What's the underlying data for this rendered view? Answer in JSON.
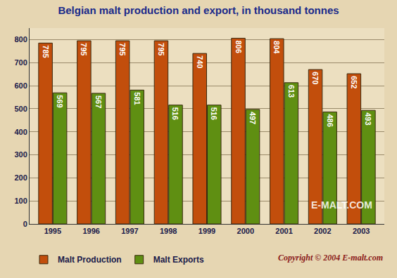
{
  "chart_data": {
    "type": "bar",
    "title": "Belgian malt production and export, in thousand tonnes",
    "categories": [
      "1995",
      "1996",
      "1997",
      "1998",
      "1999",
      "2000",
      "2001",
      "2002",
      "2003"
    ],
    "series": [
      {
        "name": "Malt Production",
        "color": "#c24e0c",
        "values": [
          785,
          795,
          795,
          795,
          740,
          806,
          804,
          670,
          652
        ]
      },
      {
        "name": "Malt Exports",
        "color": "#5f8f12",
        "values": [
          569,
          567,
          581,
          516,
          516,
          497,
          613,
          486,
          493
        ]
      }
    ],
    "ylim": [
      0,
      850
    ],
    "yticks": [
      0,
      100,
      200,
      300,
      400,
      500,
      600,
      700,
      800
    ],
    "grid": true,
    "legend": "bottom-left",
    "data_labels": true,
    "annotations": [
      "E-MALT.COM",
      "Copyright © 2004 E-malt.com"
    ]
  }
}
